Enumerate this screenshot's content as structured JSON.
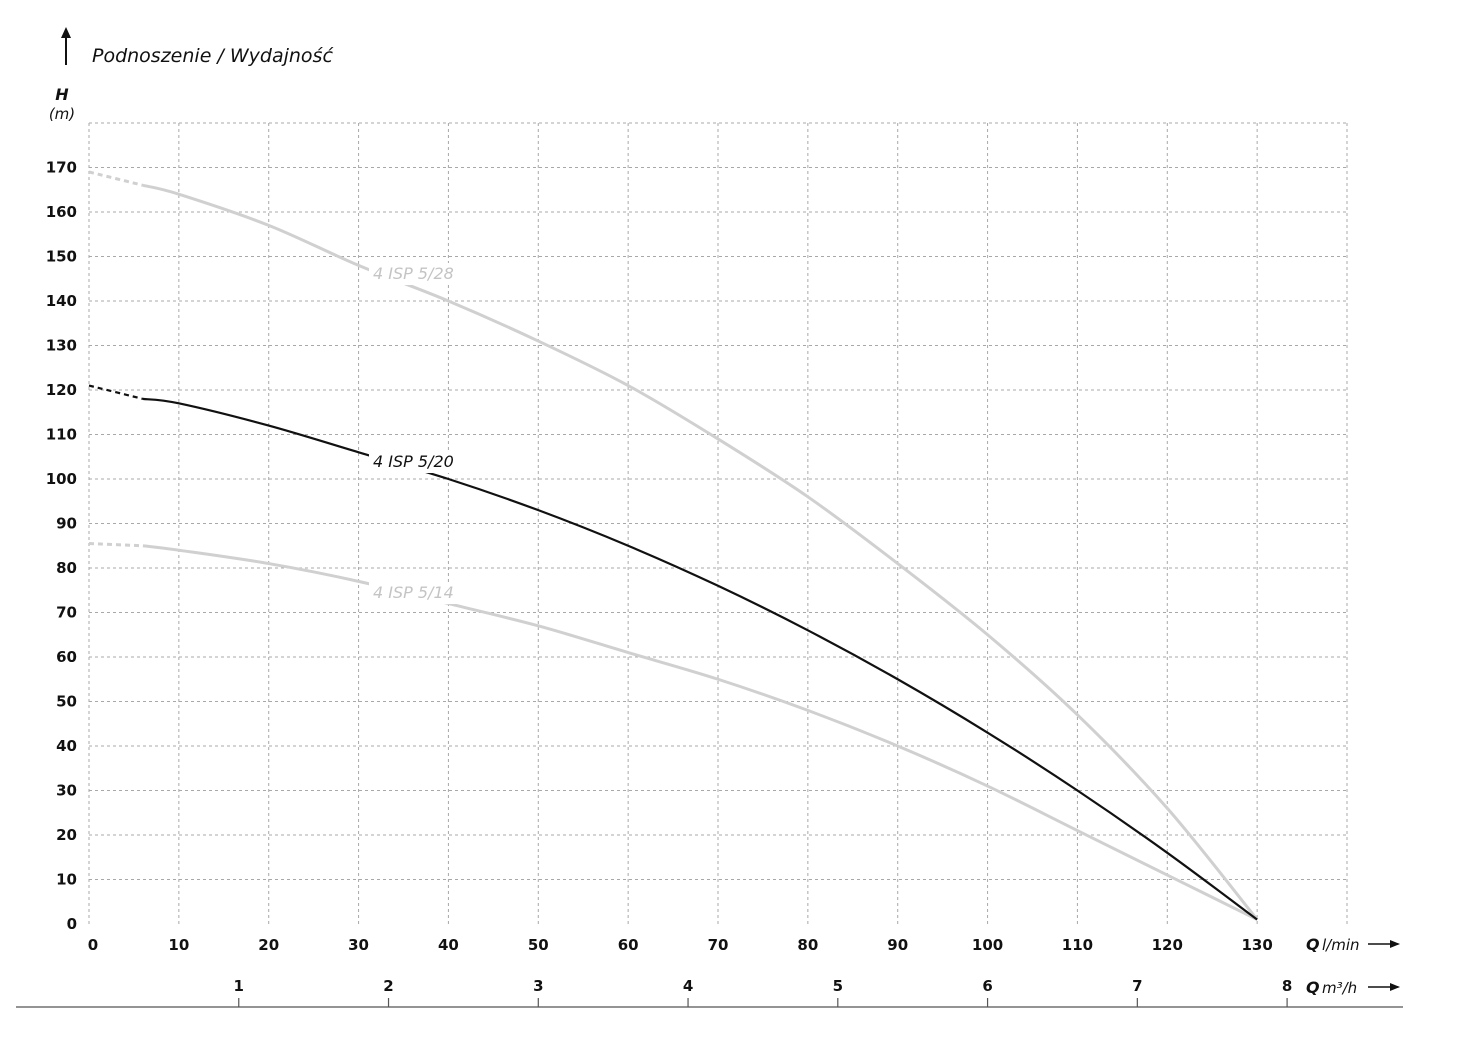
{
  "chart_data": {
    "type": "line",
    "title": "Podnoszenie / Wydajność",
    "ylabel": "H",
    "yunit": "(m)",
    "xlabel": "Q",
    "xunit": "l/min",
    "x2label": "Q",
    "x2unit": "m³/h",
    "xlim": [
      0,
      140
    ],
    "ylim": [
      0,
      180
    ],
    "x_ticks": [
      "0",
      "10",
      "20",
      "30",
      "40",
      "50",
      "60",
      "70",
      "80",
      "90",
      "100",
      "110",
      "120",
      "130"
    ],
    "y_ticks": [
      "0",
      "10",
      "20",
      "30",
      "40",
      "50",
      "60",
      "70",
      "80",
      "90",
      "100",
      "110",
      "120",
      "130",
      "140",
      "150",
      "160",
      "170"
    ],
    "x2_ticks": [
      "1",
      "2",
      "3",
      "4",
      "5",
      "6",
      "7",
      "8"
    ],
    "x2_tick_values": [
      1,
      2,
      3,
      4,
      5,
      6,
      7,
      8
    ],
    "grid": true,
    "series": [
      {
        "name": "4 ISP 5/28",
        "color": "#d0d0d0",
        "dashed_until_x": 6,
        "x": [
          0,
          6,
          10,
          20,
          30,
          40,
          50,
          60,
          70,
          80,
          90,
          100,
          110,
          120,
          130
        ],
        "y": [
          169,
          166,
          164,
          157,
          148,
          140,
          131,
          121,
          109,
          96,
          81,
          65,
          47,
          26,
          1
        ]
      },
      {
        "name": "4 ISP 5/20",
        "color": "#111111",
        "dashed_until_x": 6,
        "x": [
          0,
          6,
          10,
          20,
          30,
          40,
          50,
          60,
          70,
          80,
          90,
          100,
          110,
          120,
          130
        ],
        "y": [
          121,
          118,
          117,
          112,
          106,
          100,
          93,
          85,
          76,
          66,
          55,
          43,
          30,
          16,
          1
        ]
      },
      {
        "name": "4 ISP 5/14",
        "color": "#d0d0d0",
        "dashed_until_x": 6,
        "x": [
          0,
          6,
          10,
          20,
          30,
          40,
          50,
          60,
          70,
          80,
          90,
          100,
          110,
          120,
          130
        ],
        "y": [
          85.5,
          85,
          84,
          81,
          77,
          72,
          67,
          61,
          55,
          48,
          40,
          31,
          21,
          11,
          1
        ]
      }
    ]
  }
}
